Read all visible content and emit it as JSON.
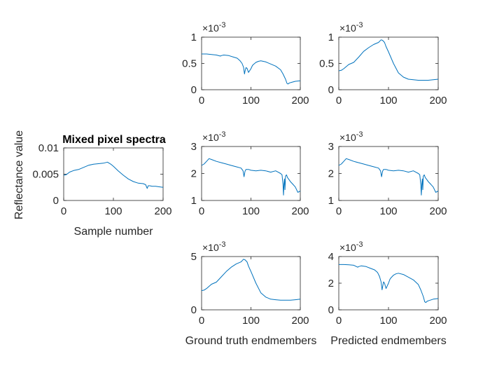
{
  "chart_data": [
    {
      "id": "mixed",
      "type": "line",
      "title": "Mixed pixel spectra",
      "xlabel": "Sample number",
      "ylabel": "Reflectance value",
      "xlim": [
        0,
        200
      ],
      "ylim": [
        0,
        0.01
      ],
      "xticks": [
        "0",
        "100",
        "200"
      ],
      "yticks": [
        "0",
        "0.005",
        "0.01"
      ],
      "exponent": "",
      "series": [
        {
          "color": "#0072BD",
          "x": [
            0,
            5,
            12,
            20,
            30,
            40,
            50,
            60,
            70,
            80,
            88,
            95,
            100,
            110,
            120,
            130,
            140,
            150,
            160,
            165,
            168,
            170,
            173,
            178,
            185,
            192,
            200
          ],
          "y": [
            0.0048,
            0.0049,
            0.0054,
            0.0057,
            0.0059,
            0.0063,
            0.0067,
            0.0069,
            0.007,
            0.0071,
            0.0073,
            0.0069,
            0.0065,
            0.0056,
            0.0048,
            0.0041,
            0.0036,
            0.0033,
            0.0032,
            0.003,
            0.0023,
            0.0028,
            0.0028,
            0.0027,
            0.0027,
            0.0026,
            0.0025
          ]
        }
      ]
    },
    {
      "id": "gt1",
      "type": "line",
      "title": "",
      "xlabel": "",
      "ylabel": "",
      "xlim": [
        0,
        200
      ],
      "ylim": [
        0,
        1
      ],
      "xticks": [
        "0",
        "100",
        "200"
      ],
      "yticks": [
        "0",
        "0.5",
        "1"
      ],
      "exponent": "-3",
      "series": [
        {
          "color": "#0072BD",
          "x": [
            0,
            10,
            20,
            30,
            38,
            40,
            45,
            55,
            65,
            72,
            78,
            82,
            85,
            87,
            88,
            90,
            92,
            95,
            100,
            103,
            105,
            110,
            115,
            120,
            130,
            140,
            150,
            160,
            165,
            170,
            173,
            175,
            178,
            182,
            190,
            200
          ],
          "y": [
            0.68,
            0.68,
            0.67,
            0.66,
            0.64,
            0.65,
            0.66,
            0.65,
            0.62,
            0.6,
            0.55,
            0.5,
            0.43,
            0.3,
            0.35,
            0.42,
            0.41,
            0.33,
            0.4,
            0.46,
            0.48,
            0.52,
            0.54,
            0.55,
            0.53,
            0.49,
            0.45,
            0.38,
            0.3,
            0.2,
            0.12,
            0.11,
            0.13,
            0.14,
            0.16,
            0.17
          ]
        }
      ]
    },
    {
      "id": "pred1",
      "type": "line",
      "title": "",
      "xlabel": "",
      "ylabel": "",
      "xlim": [
        0,
        200
      ],
      "ylim": [
        0,
        1
      ],
      "xticks": [
        "0",
        "100",
        "200"
      ],
      "yticks": [
        "0",
        "0.5",
        "1"
      ],
      "exponent": "-3",
      "series": [
        {
          "color": "#0072BD",
          "x": [
            0,
            5,
            10,
            20,
            30,
            40,
            50,
            60,
            70,
            80,
            85,
            88,
            92,
            95,
            100,
            110,
            120,
            130,
            140,
            150,
            160,
            170,
            180,
            190,
            200
          ],
          "y": [
            0.36,
            0.37,
            0.4,
            0.48,
            0.52,
            0.62,
            0.73,
            0.8,
            0.86,
            0.9,
            0.95,
            0.94,
            0.9,
            0.82,
            0.72,
            0.5,
            0.32,
            0.24,
            0.2,
            0.19,
            0.18,
            0.18,
            0.18,
            0.19,
            0.2
          ]
        }
      ]
    },
    {
      "id": "gt2",
      "type": "line",
      "title": "",
      "xlabel": "",
      "ylabel": "",
      "xlim": [
        0,
        200
      ],
      "ylim": [
        1,
        3
      ],
      "xticks": [
        "0",
        "100",
        "200"
      ],
      "yticks": [
        "1",
        "2",
        "3"
      ],
      "exponent": "-3",
      "series": [
        {
          "color": "#0072BD",
          "x": [
            0,
            5,
            10,
            15,
            20,
            30,
            40,
            50,
            60,
            70,
            80,
            84,
            86,
            88,
            90,
            95,
            100,
            110,
            120,
            130,
            140,
            150,
            155,
            160,
            163,
            165,
            166,
            167,
            168,
            169,
            170,
            172,
            174,
            176,
            180,
            185,
            190,
            195,
            200
          ],
          "y": [
            2.3,
            2.35,
            2.45,
            2.55,
            2.52,
            2.45,
            2.4,
            2.35,
            2.3,
            2.25,
            2.2,
            2.1,
            1.88,
            2.08,
            2.15,
            2.15,
            2.12,
            2.1,
            2.12,
            2.1,
            2.05,
            2.1,
            2.05,
            2.0,
            1.95,
            1.6,
            1.2,
            1.6,
            1.8,
            1.4,
            1.9,
            1.95,
            1.85,
            1.8,
            1.7,
            1.6,
            1.5,
            1.3,
            1.35
          ]
        }
      ]
    },
    {
      "id": "pred2",
      "type": "line",
      "title": "",
      "xlabel": "",
      "ylabel": "",
      "xlim": [
        0,
        200
      ],
      "ylim": [
        1,
        3
      ],
      "xticks": [
        "0",
        "100",
        "200"
      ],
      "yticks": [
        "1",
        "2",
        "3"
      ],
      "exponent": "-3",
      "series": [
        {
          "color": "#0072BD",
          "x": [
            0,
            5,
            10,
            15,
            20,
            30,
            40,
            50,
            60,
            70,
            80,
            84,
            86,
            88,
            90,
            95,
            100,
            110,
            120,
            130,
            140,
            150,
            155,
            160,
            163,
            165,
            166,
            167,
            168,
            169,
            170,
            172,
            174,
            176,
            180,
            185,
            190,
            195,
            200
          ],
          "y": [
            2.3,
            2.35,
            2.45,
            2.55,
            2.52,
            2.45,
            2.4,
            2.35,
            2.3,
            2.25,
            2.2,
            2.1,
            1.88,
            2.08,
            2.15,
            2.15,
            2.12,
            2.1,
            2.12,
            2.1,
            2.05,
            2.1,
            2.05,
            2.0,
            1.95,
            1.6,
            1.2,
            1.6,
            1.8,
            1.4,
            1.9,
            1.95,
            1.85,
            1.8,
            1.7,
            1.6,
            1.5,
            1.3,
            1.35
          ]
        }
      ]
    },
    {
      "id": "gt3",
      "type": "line",
      "title": "",
      "xlabel": "Ground truth endmembers",
      "ylabel": "",
      "xlim": [
        0,
        200
      ],
      "ylim": [
        0,
        5
      ],
      "xticks": [
        "0",
        "100",
        "200"
      ],
      "yticks": [
        "0",
        "5"
      ],
      "exponent": "-3",
      "series": [
        {
          "color": "#0072BD",
          "x": [
            0,
            5,
            10,
            20,
            30,
            40,
            50,
            60,
            70,
            80,
            85,
            88,
            92,
            95,
            100,
            110,
            120,
            130,
            140,
            150,
            160,
            170,
            180,
            190,
            200
          ],
          "y": [
            1.8,
            1.85,
            2.0,
            2.4,
            2.6,
            3.1,
            3.6,
            4.0,
            4.3,
            4.5,
            4.75,
            4.7,
            4.5,
            4.1,
            3.6,
            2.5,
            1.6,
            1.2,
            1.0,
            0.95,
            0.9,
            0.9,
            0.9,
            0.95,
            1.0
          ]
        }
      ]
    },
    {
      "id": "pred3",
      "type": "line",
      "title": "",
      "xlabel": "Predicted endmembers",
      "ylabel": "",
      "xlim": [
        0,
        200
      ],
      "ylim": [
        0,
        4
      ],
      "xticks": [
        "0",
        "100",
        "200"
      ],
      "yticks": [
        "0",
        "2",
        "4"
      ],
      "exponent": "-3",
      "series": [
        {
          "color": "#0072BD",
          "x": [
            0,
            10,
            20,
            30,
            38,
            40,
            45,
            55,
            65,
            72,
            78,
            82,
            85,
            87,
            88,
            90,
            92,
            95,
            100,
            103,
            105,
            110,
            115,
            120,
            130,
            140,
            150,
            160,
            165,
            170,
            173,
            175,
            178,
            182,
            190,
            200
          ],
          "y": [
            3.4,
            3.4,
            3.38,
            3.35,
            3.2,
            3.25,
            3.3,
            3.25,
            3.1,
            3.0,
            2.8,
            2.5,
            2.1,
            1.5,
            1.7,
            2.1,
            2.0,
            1.6,
            2.0,
            2.3,
            2.4,
            2.6,
            2.7,
            2.75,
            2.65,
            2.45,
            2.25,
            1.9,
            1.5,
            1.0,
            0.6,
            0.55,
            0.65,
            0.7,
            0.8,
            0.85
          ]
        }
      ]
    }
  ]
}
